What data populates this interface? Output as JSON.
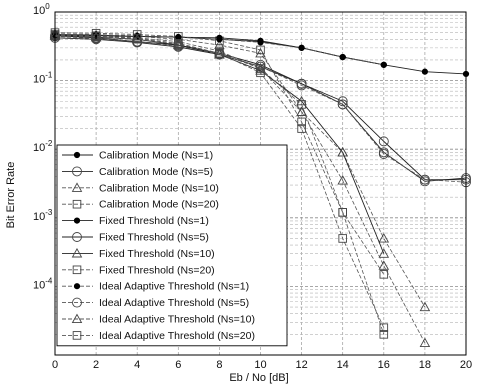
{
  "chart_data": {
    "type": "line",
    "xlabel": "Eb / No [dB]",
    "ylabel": "Bit Error Rate",
    "x_ticks": [
      0,
      2,
      4,
      6,
      8,
      10,
      12,
      14,
      16,
      18,
      20
    ],
    "xlim": [
      0,
      20
    ],
    "ylim": [
      1e-05,
      1
    ],
    "y_scale": "log",
    "y_ticks": [
      {
        "value": 1,
        "mantissa": "10",
        "exponent": "0"
      },
      {
        "value": 0.1,
        "mantissa": "10",
        "exponent": "-1"
      },
      {
        "value": 0.01,
        "mantissa": "10",
        "exponent": "-2"
      },
      {
        "value": 0.001,
        "mantissa": "10",
        "exponent": "-3"
      },
      {
        "value": 0.0001,
        "mantissa": "10",
        "exponent": "-4"
      }
    ],
    "grid": true,
    "legend_position": "bottom-left",
    "series": [
      {
        "name": "Calibration Mode (Ns=1)",
        "marker": "dot",
        "line": "solid",
        "x": [
          0,
          2,
          4,
          6,
          8,
          10,
          12,
          14,
          16,
          18,
          20
        ],
        "y": [
          0.47,
          0.46,
          0.44,
          0.43,
          0.4,
          0.37,
          0.3,
          0.22,
          0.17,
          0.135,
          0.125
        ]
      },
      {
        "name": "Calibration  Mode (Ns=5)",
        "marker": "circle",
        "line": "solid",
        "x": [
          0,
          2,
          4,
          6,
          8,
          10,
          12,
          14,
          16,
          18,
          20
        ],
        "y": [
          0.42,
          0.4,
          0.36,
          0.31,
          0.24,
          0.16,
          0.09,
          0.05,
          0.013,
          0.0036,
          0.0036
        ]
      },
      {
        "name": "Calibration Mode (Ns=10)",
        "marker": "triangle",
        "line": "dashed",
        "x": [
          0,
          2,
          4,
          6,
          8,
          10,
          12,
          14,
          16,
          18
        ],
        "y": [
          0.48,
          0.46,
          0.44,
          0.4,
          0.33,
          0.25,
          0.035,
          0.009,
          0.0005,
          5e-05
        ]
      },
      {
        "name": "Calibration Mode (Ns=20)",
        "marker": "square",
        "line": "dashed",
        "x": [
          0,
          2,
          4,
          6,
          8,
          10,
          12,
          14,
          16
        ],
        "y": [
          0.5,
          0.49,
          0.47,
          0.44,
          0.38,
          0.28,
          0.025,
          0.0012,
          2e-05
        ]
      },
      {
        "name": "Fixed Threshold (Ns=1)",
        "marker": "dot",
        "line": "solid",
        "x": [
          0,
          2,
          4,
          6,
          8,
          10,
          12,
          14,
          16
        ],
        "y": [
          0.46,
          0.45,
          0.44,
          0.43,
          0.42,
          0.38,
          0.3,
          0.22,
          0.17
        ]
      },
      {
        "name": "Fixed Threshold (Ns=5)",
        "marker": "circle",
        "line": "solid",
        "x": [
          0,
          2,
          4,
          6,
          8,
          10,
          12,
          14,
          16,
          18,
          20
        ],
        "y": [
          0.45,
          0.42,
          0.37,
          0.33,
          0.25,
          0.17,
          0.09,
          0.045,
          0.009,
          0.0034,
          0.0038
        ]
      },
      {
        "name": "Fixed Threshold (Ns=10)",
        "marker": "triangle",
        "line": "solid",
        "x": [
          0,
          2,
          4,
          6,
          8,
          10,
          12,
          14,
          16
        ],
        "y": [
          0.46,
          0.43,
          0.4,
          0.33,
          0.24,
          0.14,
          0.05,
          0.009,
          0.0003
        ]
      },
      {
        "name": "Fixed Threshold (Ns=20)",
        "marker": "square",
        "line": "dashed",
        "x": [
          0,
          2,
          4,
          6,
          8,
          10,
          12,
          14,
          16
        ],
        "y": [
          0.47,
          0.45,
          0.42,
          0.37,
          0.27,
          0.15,
          0.045,
          0.0012,
          0.00015
        ]
      },
      {
        "name": "Ideal Adaptive Threshold (Ns=1)",
        "marker": "dot",
        "line": "dashed",
        "x": [
          0,
          2,
          4,
          6,
          8,
          10,
          12,
          14,
          16
        ],
        "y": [
          0.48,
          0.47,
          0.45,
          0.43,
          0.4,
          0.36,
          0.3,
          0.22,
          0.17
        ]
      },
      {
        "name": "Ideal Adaptive Threshold (Ns=5)",
        "marker": "circle",
        "line": "dashed",
        "x": [
          0,
          2,
          4,
          6,
          8,
          10,
          12,
          14,
          16,
          18,
          20
        ],
        "y": [
          0.44,
          0.41,
          0.37,
          0.32,
          0.24,
          0.16,
          0.085,
          0.045,
          0.0085,
          0.0036,
          0.0033
        ]
      },
      {
        "name": "Ideal Adaptive Threshold (Ns=10)",
        "marker": "triangle",
        "line": "dashed",
        "x": [
          0,
          2,
          4,
          6,
          8,
          10,
          12,
          14,
          16,
          18
        ],
        "y": [
          0.45,
          0.43,
          0.4,
          0.34,
          0.25,
          0.15,
          0.035,
          0.0035,
          0.0002,
          1.5e-05
        ]
      },
      {
        "name": "Ideal Adaptive Threshold (Ns=20)",
        "marker": "square",
        "line": "dashed",
        "x": [
          0,
          2,
          4,
          6,
          8,
          10,
          12,
          14,
          16
        ],
        "y": [
          0.46,
          0.44,
          0.41,
          0.35,
          0.25,
          0.13,
          0.02,
          0.0005,
          2.5e-05
        ]
      }
    ]
  }
}
